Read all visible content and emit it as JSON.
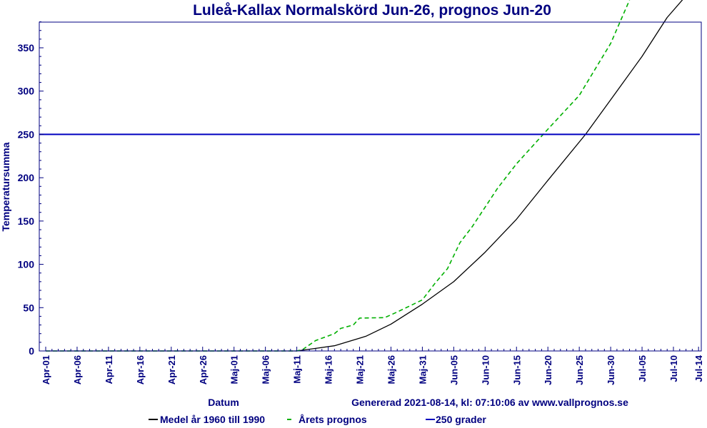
{
  "chart_data": {
    "type": "line",
    "title": "Luleå-Kallax Normalskörd Jun-26, prognos Jun-20",
    "xlabel": "Datum",
    "ylabel": "Temperatursumma",
    "footer": "Genererad 2021-08-14, kl: 07:10:06 av www.vallprognos.se",
    "ylim": [
      0,
      380
    ],
    "xlim": [
      "04-01",
      "07-14"
    ],
    "grid": false,
    "legend_position": "bottom",
    "y_ticks": [
      "0",
      "50",
      "100",
      "150",
      "200",
      "250",
      "300",
      "350"
    ],
    "x_ticks": [
      "Apr-01",
      "Apr-06",
      "Apr-11",
      "Apr-16",
      "Apr-21",
      "Apr-26",
      "Maj-01",
      "Maj-06",
      "Maj-11",
      "Maj-16",
      "Maj-21",
      "Maj-26",
      "Maj-31",
      "Jun-05",
      "Jun-10",
      "Jun-15",
      "Jun-20",
      "Jun-25",
      "Jun-30",
      "Jul-05",
      "Jul-10",
      "Jul-14"
    ],
    "series": [
      {
        "name": "Medel år 1960 till 1990",
        "color": "#000000",
        "style": "solid",
        "x": [
          "04-01",
          "05-11",
          "05-14",
          "05-17",
          "05-22",
          "05-26",
          "05-31",
          "06-05",
          "06-10",
          "06-15",
          "06-20",
          "06-26",
          "06-30",
          "07-05",
          "07-09",
          "07-12"
        ],
        "y": [
          0,
          0,
          3,
          6,
          17,
          31,
          54,
          80,
          114,
          152,
          197,
          250,
          290,
          340,
          385,
          410
        ]
      },
      {
        "name": "Årets prognos",
        "color": "#00b000",
        "style": "dashed",
        "x": [
          "04-01",
          "05-11",
          "05-12",
          "05-14",
          "05-17",
          "05-18",
          "05-20",
          "05-21",
          "05-25",
          "05-27",
          "05-29",
          "05-31",
          "06-02",
          "06-04",
          "06-06",
          "06-08",
          "06-10",
          "06-12",
          "06-15",
          "06-20",
          "06-25",
          "06-30",
          "07-03"
        ],
        "y": [
          0,
          0,
          2,
          12,
          20,
          26,
          30,
          38,
          38.5,
          45,
          52,
          59,
          78,
          95,
          125,
          144,
          166,
          188,
          216,
          256,
          295,
          355,
          405
        ]
      },
      {
        "name": "250 grader",
        "color": "#0000c0",
        "style": "solid",
        "constant": 250
      }
    ]
  },
  "colors": {
    "text": "#000080",
    "axis": "#000080"
  }
}
